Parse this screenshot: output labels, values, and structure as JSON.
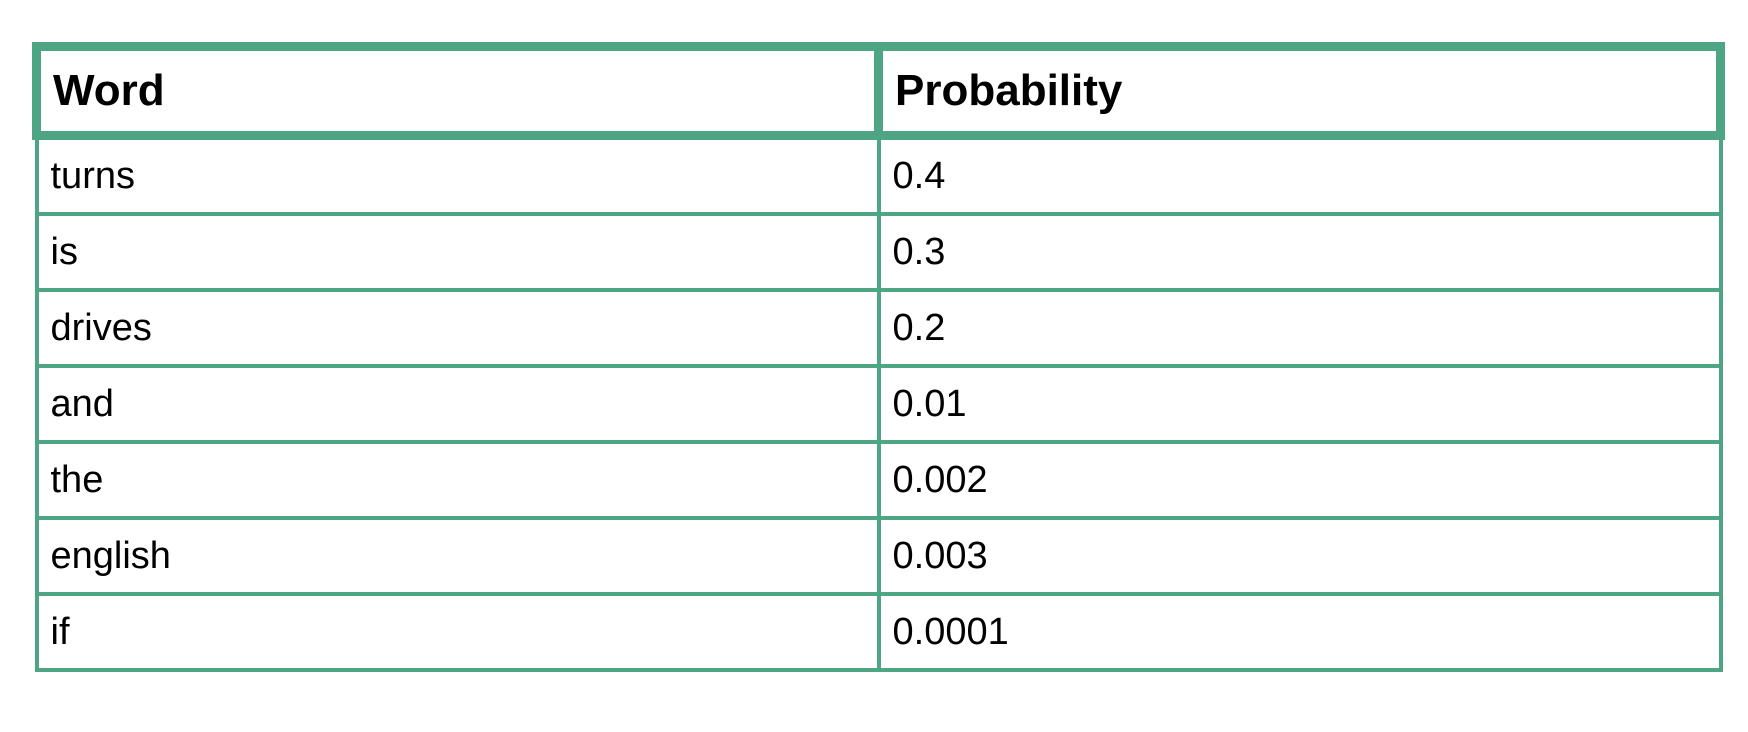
{
  "chart_data": {
    "type": "table",
    "columns": [
      "Word",
      "Probability"
    ],
    "rows": [
      [
        "turns",
        "0.4"
      ],
      [
        "is",
        "0.3"
      ],
      [
        "drives",
        "0.2"
      ],
      [
        "and",
        "0.01"
      ],
      [
        "the",
        "0.002"
      ],
      [
        "english",
        "0.003"
      ],
      [
        "if",
        "0.0001"
      ]
    ]
  },
  "colors": {
    "border": "#4da583"
  }
}
